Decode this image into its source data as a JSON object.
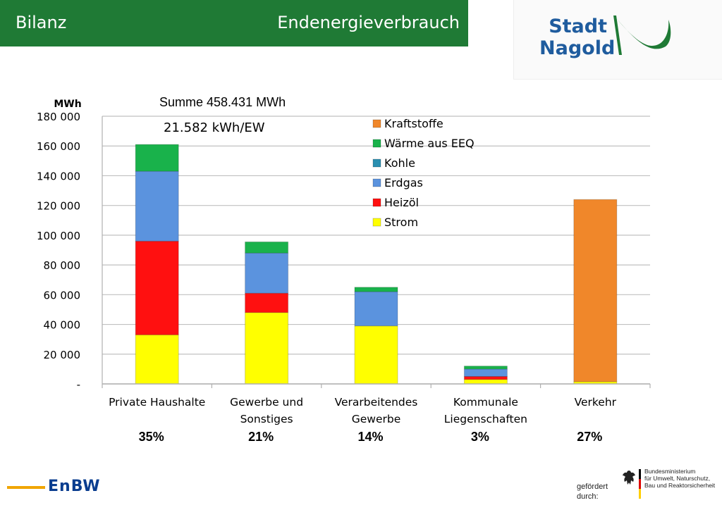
{
  "header": {
    "left_title": "Bilanz",
    "right_title": "Endenergieverbrauch"
  },
  "logo": {
    "line1": "Stadt",
    "line2": "Nagold",
    "colors": {
      "text": "#1f5c9e",
      "swoosh": "#1f7a35"
    }
  },
  "footer": {
    "brand": "EnBW",
    "funded_line1": "gefördert",
    "funded_line2": "durch:",
    "ministry_line1": "Bundesministerium",
    "ministry_line2": "für Umwelt, Naturschutz,",
    "ministry_line3": "Bau und Reaktorsicherheit"
  },
  "chart_data": {
    "type": "bar",
    "stacked": true,
    "ylabel": "MWh",
    "annotations": [
      "Summe 458.431 MWh",
      "21.582 kWh/EW"
    ],
    "ylim": [
      0,
      180000
    ],
    "yticks": [
      0,
      20000,
      40000,
      60000,
      80000,
      100000,
      120000,
      140000,
      160000,
      180000
    ],
    "ytick_labels": [
      "-",
      "20 000",
      "40 000",
      "60 000",
      "80 000",
      "100 000",
      "120 000",
      "140 000",
      "160 000",
      "180 000"
    ],
    "grid": true,
    "legend_position": "top-center",
    "categories": [
      [
        "Private Haushalte"
      ],
      [
        "Gewerbe und",
        "Sonstiges"
      ],
      [
        "Verarbeitendes",
        "Gewerbe"
      ],
      [
        "Kommunale",
        "Liegenschaften"
      ],
      [
        "Verkehr"
      ]
    ],
    "shares": [
      "35%",
      "21%",
      "14%",
      "3%",
      "27%"
    ],
    "series": [
      {
        "name": "Strom",
        "color": "#ffff00",
        "values": [
          33000,
          48000,
          39000,
          3000,
          1500
        ]
      },
      {
        "name": "Heizöl",
        "color": "#ff1010",
        "values": [
          63000,
          13000,
          0,
          2000,
          0
        ]
      },
      {
        "name": "Erdgas",
        "color": "#5b93de",
        "values": [
          47000,
          27000,
          23000,
          5000,
          0
        ]
      },
      {
        "name": "Kohle",
        "color": "#2a8fb0",
        "values": [
          0,
          0,
          0,
          0,
          0
        ]
      },
      {
        "name": "Wärme aus EEQ",
        "color": "#19b24b",
        "values": [
          18000,
          7500,
          3000,
          2000,
          0
        ]
      },
      {
        "name": "Kraftstoffe",
        "color": "#f0872a",
        "values": [
          0,
          0,
          0,
          0,
          122500
        ]
      }
    ]
  }
}
